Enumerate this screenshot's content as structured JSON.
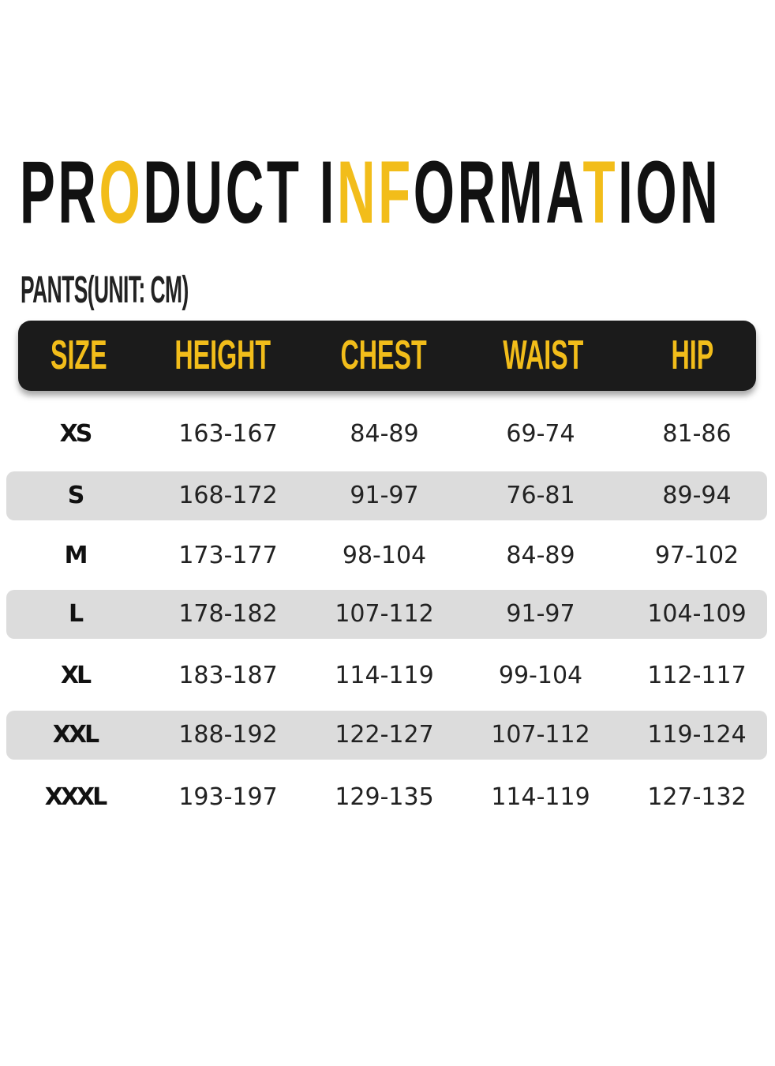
{
  "title": {
    "segments": [
      {
        "text": "PR",
        "highlight": false
      },
      {
        "text": "O",
        "highlight": true
      },
      {
        "text": "DUCT I",
        "highlight": false
      },
      {
        "text": "NF",
        "highlight": true
      },
      {
        "text": "ORMA",
        "highlight": false
      },
      {
        "text": "T",
        "highlight": true
      },
      {
        "text": "ION",
        "highlight": false
      }
    ]
  },
  "subtitle": "PANTS(UNIT: CM)",
  "colors": {
    "accent": "#f2bd1a",
    "header_bg": "#1b1b1b",
    "stripe": "#dcdcdc"
  },
  "table": {
    "headers": [
      "SIZE",
      "HEIGHT",
      "CHEST",
      "WAIST",
      "HIP"
    ],
    "rows": [
      [
        "XS",
        "163-167",
        "84-89",
        "69-74",
        "81-86"
      ],
      [
        "S",
        "168-172",
        "91-97",
        "76-81",
        "89-94"
      ],
      [
        "M",
        "173-177",
        "98-104",
        "84-89",
        "97-102"
      ],
      [
        "L",
        "178-182",
        "107-112",
        "91-97",
        "104-109"
      ],
      [
        "XL",
        "183-187",
        "114-119",
        "99-104",
        "112-117"
      ],
      [
        "XXL",
        "188-192",
        "122-127",
        "107-112",
        "119-124"
      ],
      [
        "XXXL",
        "193-197",
        "129-135",
        "114-119",
        "127-132"
      ]
    ]
  }
}
